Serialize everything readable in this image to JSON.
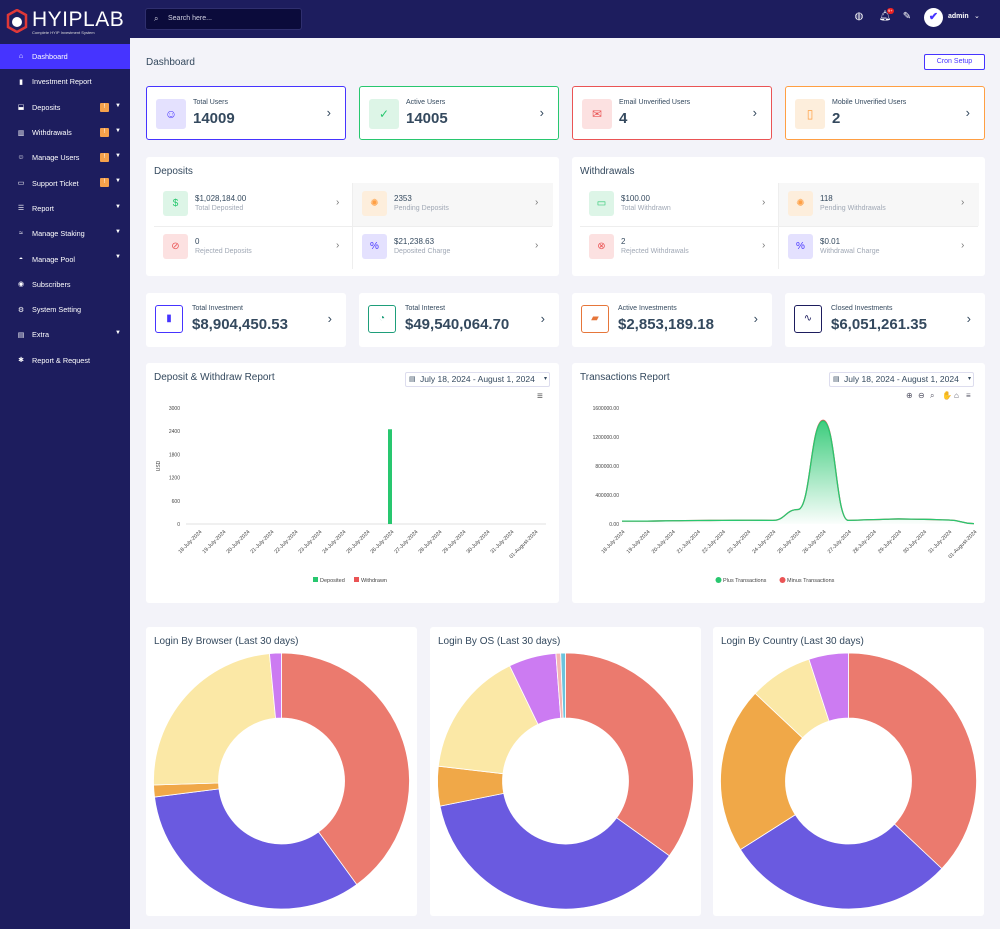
{
  "brand": {
    "name": "HYIPLAB",
    "tagline": "Complete HYIP Investment System"
  },
  "search": {
    "placeholder": "Search here..."
  },
  "header": {
    "user": "admin",
    "notifications": "9+"
  },
  "sidebar": {
    "items": [
      {
        "label": "Dashboard",
        "icon": "home-icon",
        "active": true
      },
      {
        "label": "Investment Report",
        "icon": "bar-chart-icon"
      },
      {
        "label": "Deposits",
        "icon": "deposit-icon",
        "badge": "!",
        "caret": true
      },
      {
        "label": "Withdrawals",
        "icon": "withdraw-icon",
        "badge": "!",
        "caret": true
      },
      {
        "label": "Manage Users",
        "icon": "users-icon",
        "badge": "!",
        "caret": true
      },
      {
        "label": "Support Ticket",
        "icon": "ticket-icon",
        "badge": "!",
        "caret": true
      },
      {
        "label": "Report",
        "icon": "list-icon",
        "caret": true
      },
      {
        "label": "Manage Staking",
        "icon": "staking-icon",
        "caret": true
      },
      {
        "label": "Manage Pool",
        "icon": "pool-icon",
        "caret": true
      },
      {
        "label": "Subscribers",
        "icon": "subscribers-icon"
      },
      {
        "label": "System Setting",
        "icon": "gear-icon"
      },
      {
        "label": "Extra",
        "icon": "server-icon",
        "caret": true
      },
      {
        "label": "Report & Request",
        "icon": "bug-icon"
      }
    ]
  },
  "page": {
    "title": "Dashboard",
    "cron_label": "Cron Setup"
  },
  "widgets": [
    {
      "title": "Total Users",
      "value": "14009",
      "color": "#4634ff",
      "bg": "#e4e1fe",
      "icon": "users-icon"
    },
    {
      "title": "Active Users",
      "value": "14005",
      "color": "#28c76f",
      "bg": "#ddf5e7",
      "icon": "user-check-icon"
    },
    {
      "title": "Email Unverified Users",
      "value": "4",
      "color": "#ea5455",
      "bg": "#fce1e1",
      "icon": "envelope-icon"
    },
    {
      "title": "Mobile Unverified Users",
      "value": "2",
      "color": "#ff9f43",
      "bg": "#fdeedc",
      "icon": "mobile-off-icon"
    }
  ],
  "deposits": {
    "title": "Deposits",
    "items": [
      {
        "value": "$1,028,184.00",
        "label": "Total Deposited",
        "color": "#28c76f",
        "bg": "#ddf5e7",
        "icon": "money-hand-icon"
      },
      {
        "value": "2353",
        "label": "Pending Deposits",
        "color": "#ff9f43",
        "bg": "#fdeedc",
        "icon": "spinner-icon"
      },
      {
        "value": "0",
        "label": "Rejected Deposits",
        "color": "#ea5455",
        "bg": "#fce1e1",
        "icon": "ban-icon"
      },
      {
        "value": "$21,238.63",
        "label": "Deposited Charge",
        "color": "#4634ff",
        "bg": "#e4e1fe",
        "icon": "percent-icon"
      }
    ]
  },
  "withdrawals": {
    "title": "Withdrawals",
    "items": [
      {
        "value": "$100.00",
        "label": "Total Withdrawn",
        "color": "#28c76f",
        "bg": "#ddf5e7",
        "icon": "cash-icon"
      },
      {
        "value": "118",
        "label": "Pending Withdrawals",
        "color": "#ff9f43",
        "bg": "#fdeedc",
        "icon": "spinner-icon"
      },
      {
        "value": "2",
        "label": "Rejected Withdrawals",
        "color": "#ea5455",
        "bg": "#fce1e1",
        "icon": "times-circle-icon"
      },
      {
        "value": "$0.01",
        "label": "Withdrawal Charge",
        "color": "#4634ff",
        "bg": "#e4e1fe",
        "icon": "percent-icon"
      }
    ]
  },
  "investments": [
    {
      "title": "Total Investment",
      "value": "$8,904,450.53",
      "color": "#4634ff",
      "icon": "chart-bar-icon"
    },
    {
      "title": "Total Interest",
      "value": "$49,540,064.70",
      "color": "#1e9e7a",
      "icon": "chart-pie-icon"
    },
    {
      "title": "Active Investments",
      "value": "$2,853,189.18",
      "color": "#e6763a",
      "icon": "chart-area-icon"
    },
    {
      "title": "Closed Investments",
      "value": "$6,051,261.35",
      "color": "#1d1d5e",
      "icon": "chart-line-icon"
    }
  ],
  "chart_data": [
    {
      "type": "bar",
      "title": "Deposit & Withdraw Report",
      "date_range": "July 18, 2024 - August 1, 2024",
      "categories": [
        "18-July-2024",
        "19-July-2024",
        "20-July-2024",
        "21-July-2024",
        "22-July-2024",
        "23-July-2024",
        "24-July-2024",
        "25-July-2024",
        "26-July-2024",
        "27-July-2024",
        "28-July-2024",
        "29-July-2024",
        "30-July-2024",
        "31-July-2024",
        "01-August-2024"
      ],
      "ylabel": "USD",
      "ylim": [
        0,
        3000
      ],
      "yticks": [
        "3000",
        "2400",
        "1800",
        "1200",
        "600",
        "0"
      ],
      "series": [
        {
          "name": "Deposited",
          "color": "#28c76f",
          "values": [
            0,
            0,
            0,
            0,
            0,
            0,
            0,
            0,
            2450,
            0,
            0,
            0,
            0,
            0,
            0
          ]
        },
        {
          "name": "Withdrawn",
          "color": "#ea5455",
          "values": [
            0,
            0,
            0,
            0,
            0,
            0,
            0,
            0,
            0,
            0,
            0,
            0,
            0,
            0,
            0
          ]
        }
      ],
      "legend": "bottom"
    },
    {
      "type": "area",
      "title": "Transactions Report",
      "date_range": "July 18, 2024 - August 1, 2024",
      "categories": [
        "18-July-2024",
        "19-July-2024",
        "20-July-2024",
        "21-July-2024",
        "22-July-2024",
        "23-July-2024",
        "24-July-2024",
        "25-July-2024",
        "26-July-2024",
        "27-July-2024",
        "28-July-2024",
        "29-July-2024",
        "30-July-2024",
        "31-July-2024",
        "01-August-2024"
      ],
      "ylim": [
        0,
        1600000
      ],
      "yticks": [
        "1600000.00",
        "1200000.00",
        "800000.00",
        "400000.00",
        "0.00"
      ],
      "series": [
        {
          "name": "Plus Transactions",
          "color": "#28c76f",
          "values": [
            40000,
            40000,
            45000,
            48000,
            50000,
            52000,
            50000,
            200000,
            1420000,
            50000,
            60000,
            70000,
            65000,
            55000,
            5000
          ]
        },
        {
          "name": "Minus Transactions",
          "color": "#ea5455",
          "values": [
            40000,
            40000,
            45000,
            48000,
            50000,
            52000,
            50000,
            200000,
            1430000,
            50000,
            60000,
            70000,
            65000,
            55000,
            5000
          ]
        }
      ],
      "legend": "bottom"
    },
    {
      "type": "pie",
      "title": "Login By Browser (Last 30 days)",
      "slices": [
        {
          "value": 40,
          "color": "#eb7a6e"
        },
        {
          "value": 33,
          "color": "#6a5ae0"
        },
        {
          "value": 1.5,
          "color": "#f0a848"
        },
        {
          "value": 24,
          "color": "#fbe8a6"
        },
        {
          "value": 1.5,
          "color": "#cc7bf2"
        }
      ]
    },
    {
      "type": "pie",
      "title": "Login By OS (Last 30 days)",
      "slices": [
        {
          "value": 35,
          "color": "#eb7a6e"
        },
        {
          "value": 37,
          "color": "#6a5ae0"
        },
        {
          "value": 5,
          "color": "#f0a848"
        },
        {
          "value": 16,
          "color": "#fbe8a6"
        },
        {
          "value": 6,
          "color": "#cc7bf2"
        },
        {
          "value": 0.6,
          "color": "#f5b5b5"
        },
        {
          "value": 0.6,
          "color": "#6cc3dd"
        }
      ]
    },
    {
      "type": "pie",
      "title": "Login By Country (Last 30 days)",
      "slices": [
        {
          "value": 37,
          "color": "#eb7a6e"
        },
        {
          "value": 29,
          "color": "#6a5ae0"
        },
        {
          "value": 21,
          "color": "#f0a848"
        },
        {
          "value": 8,
          "color": "#fbe8a6"
        },
        {
          "value": 5,
          "color": "#cc7bf2"
        }
      ]
    }
  ]
}
